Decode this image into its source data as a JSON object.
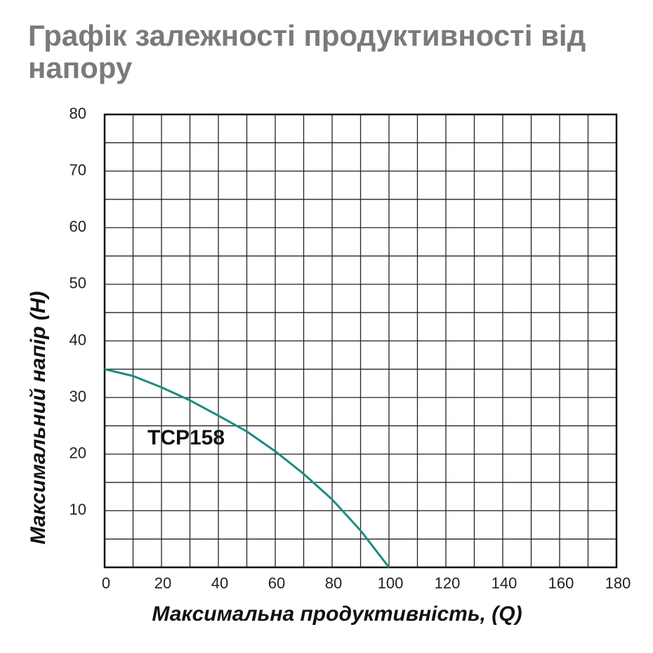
{
  "chart_data": {
    "type": "line",
    "title": "Графік залежності продуктивності від напору",
    "x_label": "Максимальна продуктивність, (Q)",
    "y_label": "Максимальний напір (H)",
    "x": [
      0,
      10,
      20,
      30,
      40,
      50,
      60,
      70,
      80,
      90,
      100
    ],
    "series": [
      {
        "name": "TCP158",
        "color": "#1b8c82",
        "values": [
          35,
          33.8,
          31.8,
          29.5,
          26.8,
          24,
          20.5,
          16.5,
          12,
          6.5,
          0
        ]
      }
    ],
    "xlim": [
      0,
      180
    ],
    "ylim": [
      0,
      80
    ],
    "xticks": [
      0,
      20,
      40,
      60,
      80,
      100,
      120,
      140,
      160,
      180
    ],
    "yticks": [
      10,
      20,
      30,
      40,
      50,
      60,
      70,
      80
    ],
    "minor_xticks": [
      10,
      30,
      50,
      70,
      90,
      110,
      130,
      150,
      170
    ],
    "minor_yticks": [
      5,
      15,
      25,
      35,
      45,
      55,
      65,
      75
    ],
    "grid": true
  }
}
